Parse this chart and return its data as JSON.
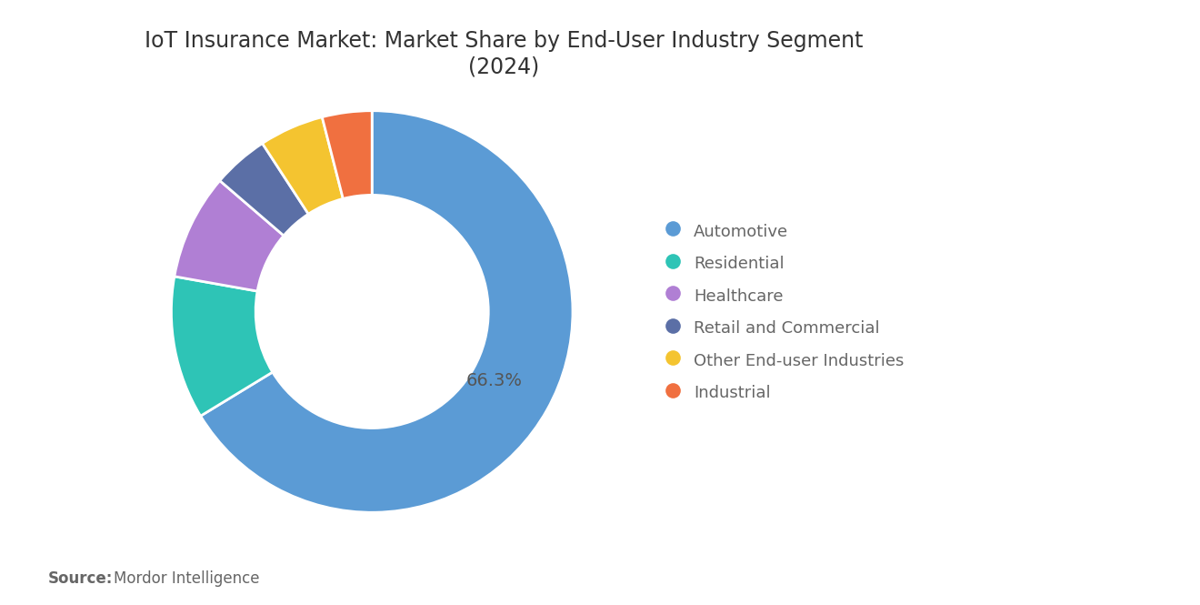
{
  "title": "IoT Insurance Market: Market Share by End-User Industry Segment\n(2024)",
  "segments": [
    {
      "label": "Automotive",
      "value": 66.3,
      "color": "#5B9BD5"
    },
    {
      "label": "Residential",
      "value": 11.5,
      "color": "#2EC4B6"
    },
    {
      "label": "Healthcare",
      "value": 8.5,
      "color": "#B07FD4"
    },
    {
      "label": "Retail and Commercial",
      "value": 4.5,
      "color": "#5B6FA6"
    },
    {
      "label": "Other End-user Industries",
      "value": 5.2,
      "color": "#F4C430"
    },
    {
      "label": "Industrial",
      "value": 4.0,
      "color": "#F07040"
    }
  ],
  "label_text": "66.3%",
  "source_bold": "Source:",
  "source_text": "Mordor Intelligence",
  "bg_color": "#FFFFFF",
  "title_fontsize": 17,
  "legend_fontsize": 13,
  "source_fontsize": 12
}
